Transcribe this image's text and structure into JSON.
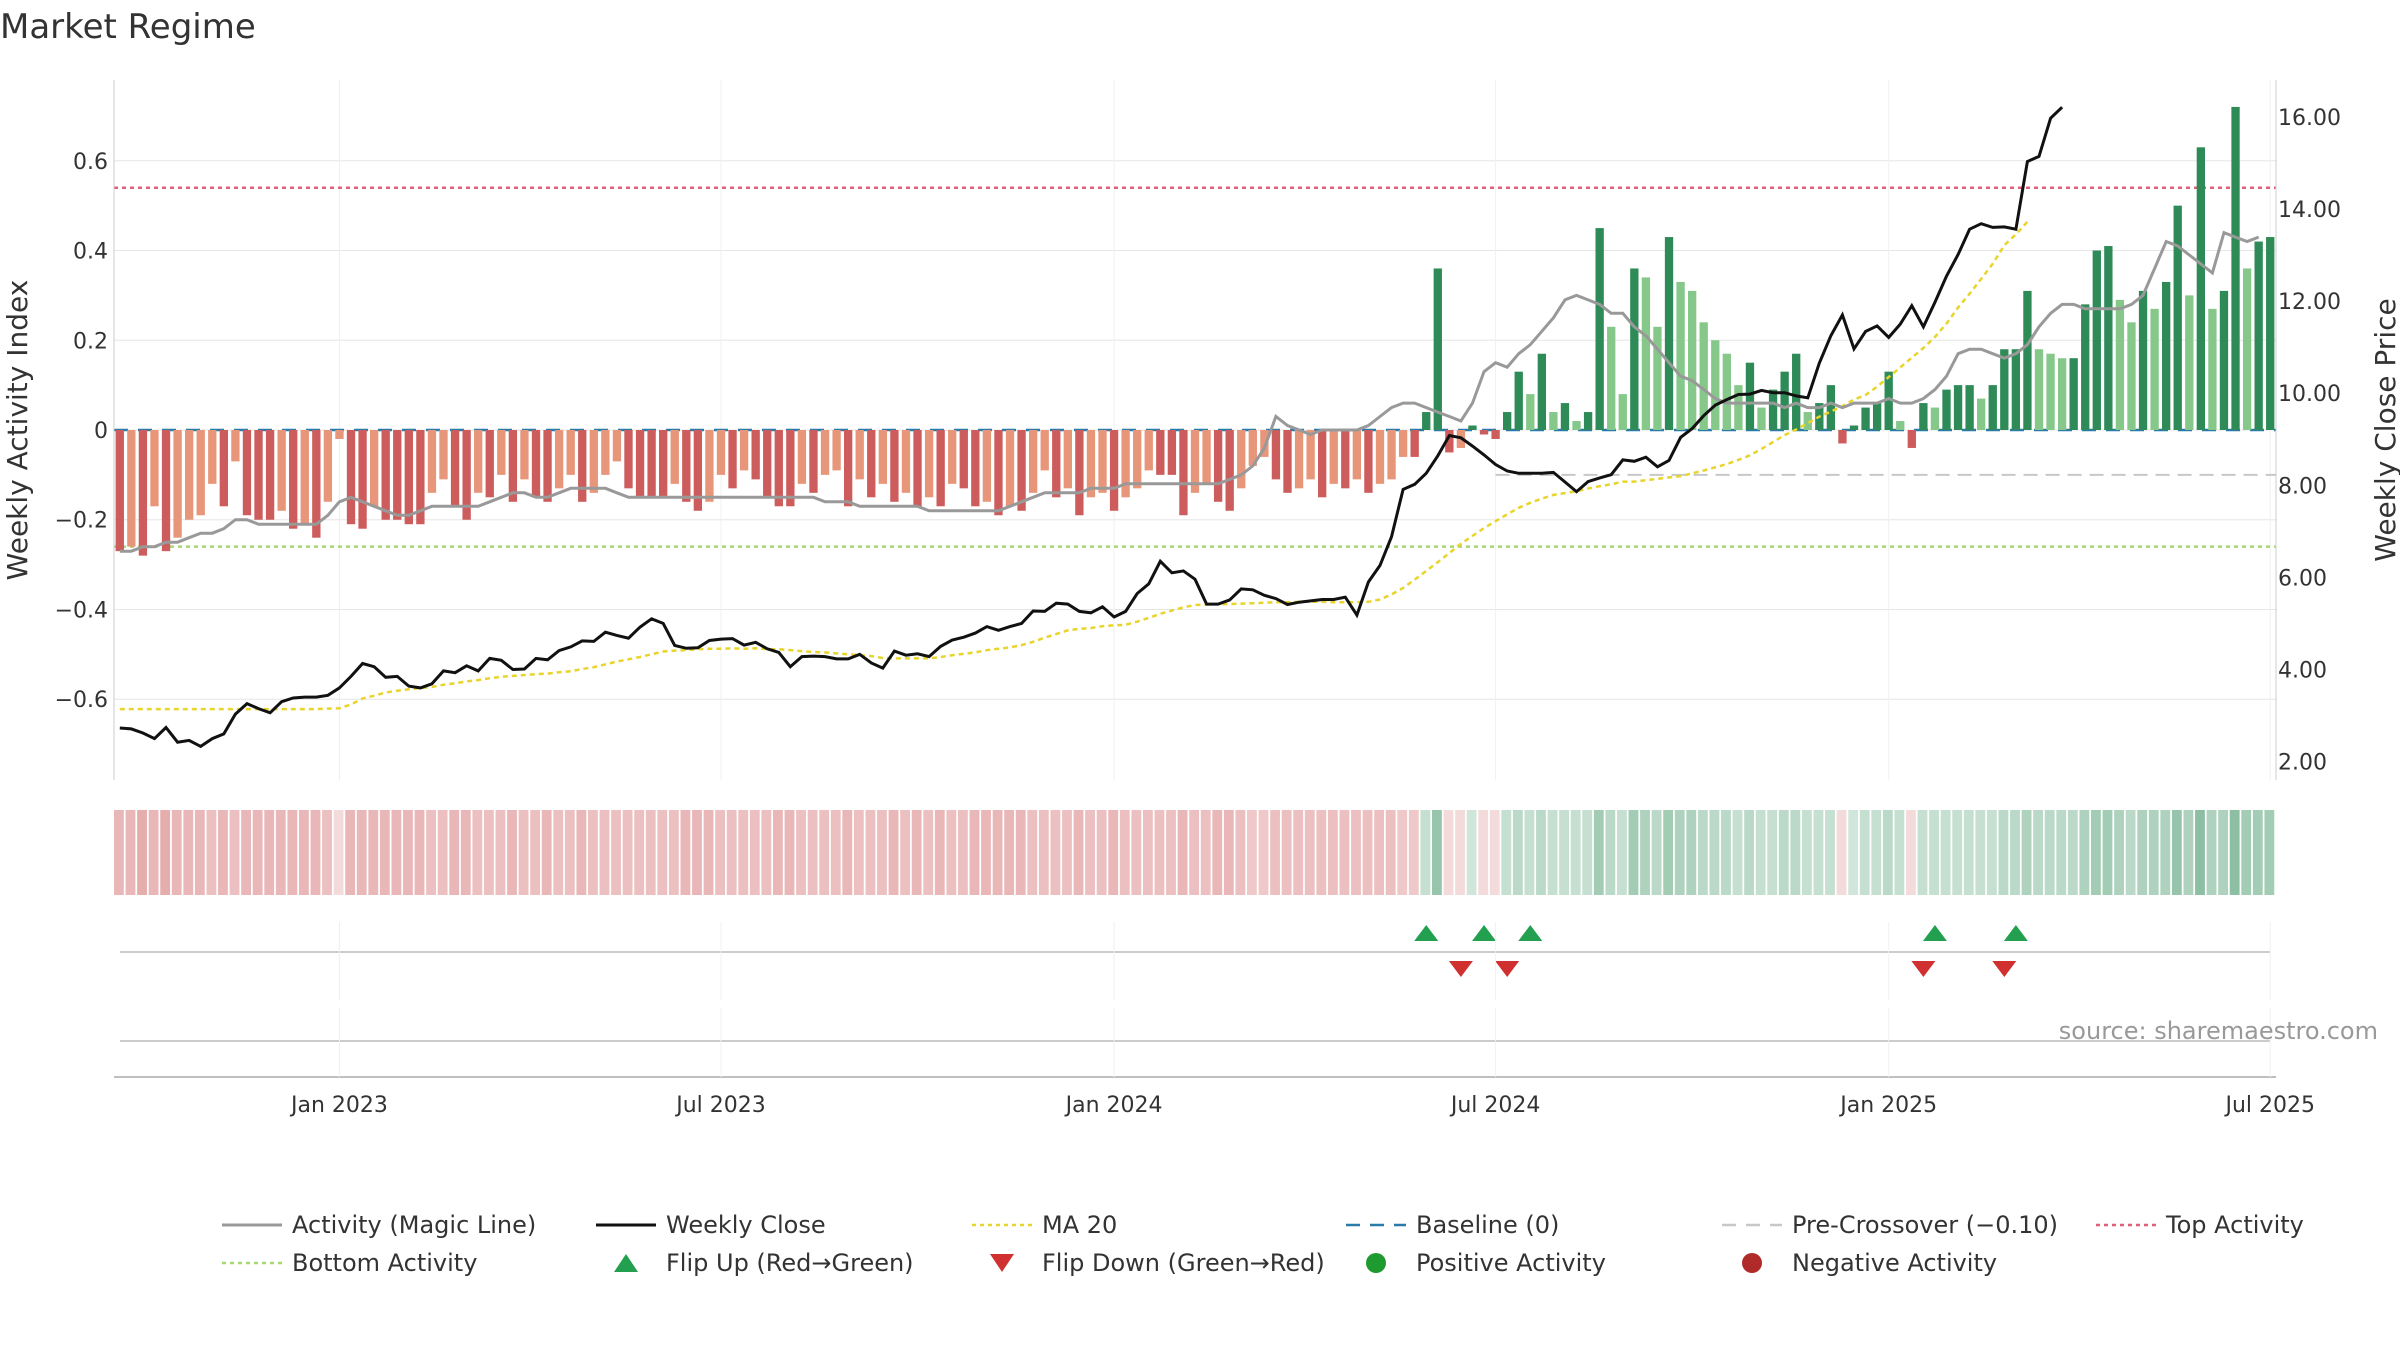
{
  "chart_data": {
    "type": "bar",
    "title": "Market Regime",
    "ylabel": "Weekly Activity Index",
    "y2label": "Weekly Close Price",
    "source": "source: sharemaestro.com",
    "ylim": [
      -0.78,
      0.78
    ],
    "y2lim": [
      1.6,
      16.8
    ],
    "yticks": [
      {
        "v": 0.6,
        "t": "0.6"
      },
      {
        "v": 0.4,
        "t": "0.4"
      },
      {
        "v": 0.2,
        "t": "0.2"
      },
      {
        "v": 0,
        "t": "0"
      },
      {
        "v": -0.2,
        "t": "−0.2"
      },
      {
        "v": -0.4,
        "t": "−0.4"
      },
      {
        "v": -0.6,
        "t": "−0.6"
      }
    ],
    "y2ticks": [
      {
        "v": 16,
        "t": "16.00"
      },
      {
        "v": 14,
        "t": "14.00"
      },
      {
        "v": 12,
        "t": "12.00"
      },
      {
        "v": 10,
        "t": "10.00"
      },
      {
        "v": 8,
        "t": "8.00"
      },
      {
        "v": 6,
        "t": "6.00"
      },
      {
        "v": 4,
        "t": "4.00"
      },
      {
        "v": 2,
        "t": "2.00"
      }
    ],
    "xticks": [
      {
        "i": 19,
        "t": "Jan 2023"
      },
      {
        "i": 52,
        "t": "Jul 2023"
      },
      {
        "i": 86,
        "t": "Jan 2024"
      },
      {
        "i": 119,
        "t": "Jul 2024"
      },
      {
        "i": 153,
        "t": "Jan 2025"
      },
      {
        "i": 186,
        "t": "Jul 2025"
      }
    ],
    "top_activity": 0.54,
    "bottom_activity": -0.26,
    "pre_crossover": -0.1,
    "baseline": 0,
    "activity": [
      -0.27,
      -0.26,
      -0.28,
      -0.17,
      -0.27,
      -0.24,
      -0.2,
      -0.19,
      -0.12,
      -0.17,
      -0.07,
      -0.19,
      -0.2,
      -0.2,
      -0.18,
      -0.22,
      -0.21,
      -0.24,
      -0.16,
      -0.02,
      -0.21,
      -0.22,
      -0.17,
      -0.2,
      -0.2,
      -0.21,
      -0.21,
      -0.14,
      -0.11,
      -0.17,
      -0.2,
      -0.14,
      -0.15,
      -0.1,
      -0.16,
      -0.11,
      -0.15,
      -0.16,
      -0.13,
      -0.1,
      -0.16,
      -0.14,
      -0.1,
      -0.07,
      -0.13,
      -0.15,
      -0.15,
      -0.15,
      -0.12,
      -0.16,
      -0.18,
      -0.16,
      -0.1,
      -0.13,
      -0.09,
      -0.11,
      -0.15,
      -0.17,
      -0.17,
      -0.12,
      -0.14,
      -0.1,
      -0.09,
      -0.17,
      -0.11,
      -0.15,
      -0.12,
      -0.16,
      -0.14,
      -0.17,
      -0.15,
      -0.17,
      -0.12,
      -0.13,
      -0.17,
      -0.16,
      -0.19,
      -0.17,
      -0.18,
      -0.14,
      -0.09,
      -0.15,
      -0.13,
      -0.19,
      -0.15,
      -0.14,
      -0.18,
      -0.15,
      -0.13,
      -0.09,
      -0.1,
      -0.1,
      -0.19,
      -0.14,
      -0.12,
      -0.16,
      -0.18,
      -0.13,
      -0.08,
      -0.06,
      -0.11,
      -0.14,
      -0.13,
      -0.11,
      -0.15,
      -0.12,
      -0.13,
      -0.11,
      -0.14,
      -0.12,
      -0.11,
      -0.06,
      -0.06,
      0.04,
      0.36,
      -0.05,
      -0.04,
      0.01,
      -0.01,
      -0.02,
      0.04,
      0.13,
      0.08,
      0.17,
      0.04,
      0.06,
      0.02,
      0.04,
      0.45,
      0.23,
      0.08,
      0.36,
      0.34,
      0.23,
      0.43,
      0.33,
      0.31,
      0.24,
      0.2,
      0.17,
      0.1,
      0.15,
      0.05,
      0.09,
      0.13,
      0.17,
      0.04,
      0.06,
      0.1,
      -0.03,
      0.01,
      0.05,
      0.06,
      0.13,
      0.02,
      -0.04,
      0.06,
      0.05,
      0.09,
      0.1,
      0.1,
      0.07,
      0.1,
      0.18,
      0.18,
      0.31,
      0.18,
      0.17,
      0.16,
      0.16,
      0.28,
      0.4,
      0.41,
      0.29,
      0.24,
      0.31,
      0.27,
      0.33,
      0.5,
      0.3,
      0.63,
      0.27,
      0.31,
      0.72,
      0.36,
      0.42,
      0.43
    ],
    "magic_line": [
      -0.27,
      -0.27,
      -0.26,
      -0.26,
      -0.25,
      -0.25,
      -0.24,
      -0.23,
      -0.23,
      -0.22,
      -0.2,
      -0.2,
      -0.21,
      -0.21,
      -0.21,
      -0.21,
      -0.21,
      -0.21,
      -0.19,
      -0.16,
      -0.15,
      -0.16,
      -0.17,
      -0.18,
      -0.19,
      -0.19,
      -0.18,
      -0.17,
      -0.17,
      -0.17,
      -0.17,
      -0.17,
      -0.16,
      -0.15,
      -0.14,
      -0.14,
      -0.15,
      -0.15,
      -0.14,
      -0.13,
      -0.13,
      -0.13,
      -0.13,
      -0.14,
      -0.15,
      -0.15,
      -0.15,
      -0.15,
      -0.15,
      -0.15,
      -0.15,
      -0.15,
      -0.15,
      -0.15,
      -0.15,
      -0.15,
      -0.15,
      -0.15,
      -0.15,
      -0.15,
      -0.15,
      -0.16,
      -0.16,
      -0.16,
      -0.17,
      -0.17,
      -0.17,
      -0.17,
      -0.17,
      -0.17,
      -0.18,
      -0.18,
      -0.18,
      -0.18,
      -0.18,
      -0.18,
      -0.18,
      -0.17,
      -0.16,
      -0.15,
      -0.14,
      -0.14,
      -0.14,
      -0.14,
      -0.13,
      -0.13,
      -0.13,
      -0.12,
      -0.12,
      -0.12,
      -0.12,
      -0.12,
      -0.12,
      -0.12,
      -0.12,
      -0.12,
      -0.11,
      -0.1,
      -0.08,
      -0.04,
      0.03,
      0.01,
      0.0,
      -0.01,
      0.0,
      0.0,
      0.0,
      0.0,
      0.01,
      0.03,
      0.05,
      0.06,
      0.06,
      0.05,
      0.04,
      0.03,
      0.02,
      0.06,
      0.13,
      0.15,
      0.14,
      0.17,
      0.19,
      0.22,
      0.25,
      0.29,
      0.3,
      0.29,
      0.28,
      0.26,
      0.26,
      0.23,
      0.21,
      0.18,
      0.15,
      0.12,
      0.11,
      0.09,
      0.07,
      0.06,
      0.06,
      0.06,
      0.06,
      0.06,
      0.05,
      0.06,
      0.05,
      0.05,
      0.06,
      0.05,
      0.06,
      0.06,
      0.06,
      0.07,
      0.06,
      0.06,
      0.07,
      0.09,
      0.12,
      0.17,
      0.18,
      0.18,
      0.17,
      0.16,
      0.17,
      0.19,
      0.23,
      0.26,
      0.28,
      0.28,
      0.27,
      0.27,
      0.27,
      0.27,
      0.28,
      0.3,
      0.36,
      0.42,
      0.41,
      0.39,
      0.37,
      0.35,
      0.44,
      0.43,
      0.42,
      0.43
    ],
    "close": [
      2.73,
      2.71,
      2.62,
      2.5,
      2.74,
      2.42,
      2.46,
      2.33,
      2.5,
      2.6,
      3.03,
      3.26,
      3.15,
      3.06,
      3.3,
      3.38,
      3.4,
      3.4,
      3.44,
      3.6,
      3.85,
      4.13,
      4.06,
      3.83,
      3.85,
      3.64,
      3.6,
      3.69,
      3.97,
      3.93,
      4.08,
      3.97,
      4.24,
      4.2,
      4.0,
      4.01,
      4.24,
      4.21,
      4.41,
      4.49,
      4.62,
      4.61,
      4.81,
      4.74,
      4.68,
      4.92,
      5.1,
      5.0,
      4.52,
      4.46,
      4.47,
      4.63,
      4.66,
      4.67,
      4.53,
      4.59,
      4.45,
      4.37,
      4.06,
      4.28,
      4.29,
      4.28,
      4.23,
      4.23,
      4.33,
      4.14,
      4.03,
      4.4,
      4.31,
      4.34,
      4.28,
      4.5,
      4.64,
      4.7,
      4.79,
      4.93,
      4.85,
      4.93,
      5.0,
      5.27,
      5.26,
      5.44,
      5.42,
      5.26,
      5.23,
      5.36,
      5.14,
      5.26,
      5.65,
      5.86,
      6.35,
      6.1,
      6.14,
      5.96,
      5.42,
      5.42,
      5.51,
      5.75,
      5.73,
      5.61,
      5.54,
      5.41,
      5.46,
      5.49,
      5.52,
      5.52,
      5.57,
      5.18,
      5.9,
      6.26,
      6.88,
      7.91,
      8.02,
      8.26,
      8.64,
      9.08,
      9.03,
      8.85,
      8.66,
      8.45,
      8.31,
      8.26,
      8.26,
      8.26,
      8.28,
      8.07,
      7.86,
      8.08,
      8.16,
      8.23,
      8.55,
      8.52,
      8.61,
      8.4,
      8.54,
      9.04,
      9.23,
      9.51,
      9.74,
      9.86,
      9.97,
      9.98,
      10.06,
      10.01,
      10.01,
      9.94,
      9.9,
      10.65,
      11.25,
      11.7,
      10.96,
      11.34,
      11.46,
      11.21,
      11.5,
      11.9,
      11.44,
      11.97,
      12.54,
      13.01,
      13.56,
      13.68,
      13.6,
      13.61,
      13.56,
      15.03,
      15.14,
      15.97,
      16.21
    ],
    "ma20": [
      3.14,
      3.14,
      3.14,
      3.14,
      3.14,
      3.14,
      3.14,
      3.14,
      3.14,
      3.14,
      3.14,
      3.14,
      3.14,
      3.14,
      3.14,
      3.14,
      3.14,
      3.14,
      3.15,
      3.16,
      3.24,
      3.37,
      3.43,
      3.5,
      3.54,
      3.57,
      3.6,
      3.62,
      3.67,
      3.7,
      3.74,
      3.77,
      3.81,
      3.84,
      3.86,
      3.88,
      3.9,
      3.91,
      3.94,
      3.96,
      4.01,
      4.05,
      4.11,
      4.17,
      4.22,
      4.27,
      4.33,
      4.39,
      4.41,
      4.42,
      4.44,
      4.45,
      4.45,
      4.46,
      4.45,
      4.46,
      4.44,
      4.44,
      4.42,
      4.4,
      4.38,
      4.37,
      4.35,
      4.33,
      4.31,
      4.29,
      4.25,
      4.24,
      4.24,
      4.24,
      4.24,
      4.27,
      4.31,
      4.34,
      4.37,
      4.42,
      4.45,
      4.48,
      4.53,
      4.6,
      4.69,
      4.77,
      4.85,
      4.88,
      4.9,
      4.94,
      4.96,
      4.97,
      5.04,
      5.12,
      5.21,
      5.28,
      5.35,
      5.4,
      5.41,
      5.42,
      5.42,
      5.43,
      5.44,
      5.45,
      5.46,
      5.46,
      5.47,
      5.47,
      5.47,
      5.46,
      5.46,
      5.46,
      5.47,
      5.52,
      5.63,
      5.77,
      5.95,
      6.14,
      6.33,
      6.53,
      6.73,
      6.9,
      7.07,
      7.22,
      7.37,
      7.51,
      7.62,
      7.71,
      7.79,
      7.83,
      7.87,
      7.93,
      7.98,
      8.02,
      8.08,
      8.08,
      8.11,
      8.14,
      8.17,
      8.2,
      8.26,
      8.32,
      8.39,
      8.46,
      8.55,
      8.65,
      8.79,
      8.94,
      9.09,
      9.21,
      9.35,
      9.49,
      9.6,
      9.72,
      9.86,
      9.96,
      10.14,
      10.35,
      10.56,
      10.77,
      10.98,
      11.22,
      11.51,
      11.86,
      12.16,
      12.48,
      12.81,
      13.21,
      13.45,
      13.72
    ],
    "regime_bar_level": [
      0.8,
      0.8,
      0.9,
      0.8,
      0.9,
      0.8,
      0.8,
      0.8,
      0.7,
      0.8,
      0.7,
      0.8,
      0.8,
      0.8,
      0.8,
      0.8,
      0.8,
      0.8,
      0.7,
      0.4,
      0.8,
      0.8,
      0.8,
      0.8,
      0.8,
      0.8,
      0.8,
      0.7,
      0.7,
      0.8,
      0.8,
      0.7,
      0.7,
      0.7,
      0.8,
      0.7,
      0.7,
      0.8,
      0.7,
      0.7,
      0.8,
      0.7,
      0.7,
      0.7,
      0.7,
      0.7,
      0.7,
      0.7,
      0.7,
      0.8,
      0.8,
      0.8,
      0.7,
      0.7,
      0.7,
      0.7,
      0.7,
      0.8,
      0.8,
      0.7,
      0.7,
      0.7,
      0.7,
      0.8,
      0.7,
      0.7,
      0.7,
      0.8,
      0.7,
      0.8,
      0.7,
      0.8,
      0.7,
      0.7,
      0.8,
      0.8,
      0.8,
      0.8,
      0.8,
      0.7,
      0.7,
      0.7,
      0.7,
      0.8,
      0.7,
      0.7,
      0.8,
      0.7,
      0.7,
      0.7,
      0.7,
      0.7,
      0.8,
      0.7,
      0.7,
      0.8,
      0.8,
      0.7,
      0.6,
      0.6,
      0.7,
      0.7,
      0.7,
      0.7,
      0.7,
      0.7,
      0.7,
      0.7,
      0.7,
      0.7,
      0.7,
      0.6,
      0.6,
      0.5,
      0.9,
      0.4,
      0.4,
      0.4,
      0.4,
      0.4,
      0.5,
      0.6,
      0.5,
      0.6,
      0.5,
      0.5,
      0.5,
      0.5,
      0.8,
      0.6,
      0.5,
      0.8,
      0.7,
      0.6,
      0.8,
      0.7,
      0.7,
      0.6,
      0.6,
      0.6,
      0.5,
      0.6,
      0.5,
      0.5,
      0.6,
      0.6,
      0.5,
      0.5,
      0.5,
      0.4,
      0.4,
      0.5,
      0.5,
      0.6,
      0.5,
      0.4,
      0.5,
      0.5,
      0.5,
      0.5,
      0.5,
      0.5,
      0.5,
      0.6,
      0.6,
      0.7,
      0.6,
      0.6,
      0.6,
      0.6,
      0.7,
      0.8,
      0.8,
      0.7,
      0.6,
      0.7,
      0.7,
      0.7,
      0.9,
      0.7,
      1.0,
      0.7,
      0.7,
      1.0,
      0.8,
      0.8,
      0.8
    ],
    "flip_up_idx": [
      113,
      118,
      122,
      157,
      164
    ],
    "flip_down_idx": [
      116,
      120,
      156,
      163
    ],
    "legend": [
      {
        "key": "magic",
        "label": "Activity (Magic Line)",
        "color": "#999999"
      },
      {
        "key": "close",
        "label": "Weekly Close",
        "color": "#111111"
      },
      {
        "key": "ma20",
        "label": "MA 20",
        "color": "#e8d42a"
      },
      {
        "key": "baseline",
        "label": "Baseline (0)",
        "color": "#2a7aaa"
      },
      {
        "key": "precross",
        "label": "Pre-Crossover (−0.10)",
        "color": "#c8c8c8"
      },
      {
        "key": "top",
        "label": "Top Activity",
        "color": "#e0607a"
      },
      {
        "key": "bottom",
        "label": "Bottom Activity",
        "color": "#a8d870"
      },
      {
        "key": "flipup",
        "label": "Flip Up (Red→Green)",
        "color": "#22a050"
      },
      {
        "key": "flipdown",
        "label": "Flip Down (Green→Red)",
        "color": "#d03030"
      },
      {
        "key": "pos",
        "label": "Positive Activity",
        "color": "#1e9a30"
      },
      {
        "key": "neg",
        "label": "Negative Activity",
        "color": "#b02a2a"
      }
    ],
    "colors": {
      "pos_strong": "#2e8b57",
      "pos_weak": "#86c88a",
      "neg_strong": "#cd5c5c",
      "neg_weak": "#e8967a",
      "grid": "#e6e6e6"
    }
  }
}
